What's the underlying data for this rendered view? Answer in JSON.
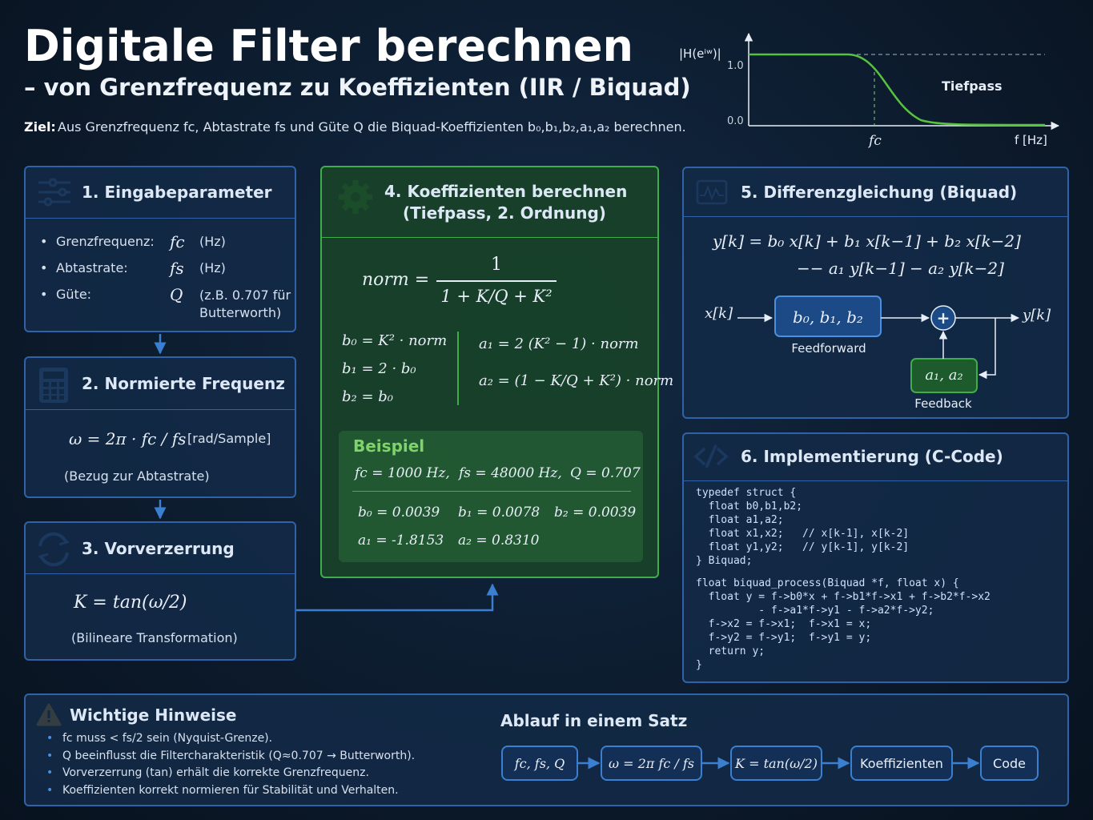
{
  "header": {
    "title": "Digitale Filter berechnen",
    "subtitle": "– von Grenzfrequenz zu Koeffizienten (IIR / Biquad)",
    "goal_label": "Ziel:",
    "goal_text": "Aus Grenzfrequenz fc, Abtastrate fs und Güte Q die Biquad-Koeffizienten b₀,b₁,b₂,a₁,a₂ berechnen."
  },
  "plot": {
    "y_label": "|H(eⁱʷ)|",
    "y_top": "1.0",
    "y_bottom": "0.0",
    "x_mark": "fc",
    "x_label": "f [Hz]",
    "curve_label": "Tiefpass"
  },
  "input": {
    "title": "1. Eingabeparameter",
    "rows": [
      [
        "Grenzfrequenz:",
        "fc",
        "(Hz)"
      ],
      [
        "Abtastrate:",
        "fs",
        "(Hz)"
      ],
      [
        "Güte:",
        "Q",
        "(z.B. 0.707 für Butterworth)"
      ]
    ]
  },
  "normfreq": {
    "title": "2. Normierte Frequenz",
    "formula": "ω = 2π · fc / fs",
    "unit": "[rad/Sample]",
    "note": "(Bezug zur Abtastrate)"
  },
  "prewarp": {
    "title": "3. Vorverzerrung",
    "formula": "K = tan(ω/2)",
    "note": "(Bilineare Transformation)"
  },
  "coeffs": {
    "title": "4. Koeffizienten berechnen",
    "subtitle": "(Tiefpass, 2. Ordnung)",
    "norm_label": "norm =",
    "numerator": "1",
    "denominator": "1 + K/Q + K²",
    "left": [
      "b₀ = K² · norm",
      "b₁ = 2 · b₀",
      "b₂ = b₀"
    ],
    "right": [
      "a₁ = 2 (K² − 1) · norm",
      "a₂ = (1 − K/Q + K²) · norm"
    ],
    "example": {
      "title": "Beispiel",
      "params": [
        "fc = 1000 Hz,",
        "fs = 48000 Hz,",
        "Q = 0.707"
      ],
      "results": [
        "b₀ = 0.0039",
        "b₁ = 0.0078",
        "b₂ = 0.0039",
        "a₁ = -1.8153",
        "a₂ = 0.8310"
      ]
    }
  },
  "diffeq": {
    "title": "5. Differenzgleichung (Biquad)",
    "lines": [
      "y[k] = b₀ x[k] + b₁ x[k−1] + b₂ x[k−2]",
      "−− a₁ y[k−1] − a₂ y[k−2]"
    ],
    "input": "x[k]",
    "ff": "b₀, b₁, b₂",
    "ff_label": "Feedforward",
    "sum": "+",
    "output": "y[k]",
    "fb": "a₁, a₂",
    "fb_label": "Feedback"
  },
  "code": {
    "title": "6. Implementierung (C-Code)",
    "blocks": [
      [
        "typedef struct {",
        "  float b0,b1,b2;",
        "  float a1,a2;",
        "  float x1,x2;   // x[k-1], x[k-2]",
        "  float y1,y2;   // y[k-1], y[k-2]",
        "} Biquad;"
      ],
      [
        "float biquad_process(Biquad *f, float x) {",
        "  float y = f->b0*x + f->b1*f->x1 + f->b2*f->x2",
        "          - f->a1*f->y1 - f->a2*f->y2;",
        "  f->x2 = f->x1;  f->x1 = x;",
        "  f->y2 = f->y1;  f->y1 = y;",
        "  return y;",
        "}"
      ]
    ]
  },
  "hints": {
    "title": "Wichtige Hinweise",
    "items": [
      "fc muss < fs/2 sein (Nyquist-Grenze).",
      "Q beeinflusst die Filtercharakteristik (Q≈0.707 → Butterworth).",
      "Vorverzerrung (tan) erhält die korrekte Grenzfrequenz.",
      "Koeffizienten korrekt normieren für Stabilität und Verhalten."
    ]
  },
  "flow": {
    "title": "Ablauf in einem Satz",
    "steps": [
      "fc, fs, Q",
      "ω = 2π fc / fs",
      "K = tan(ω/2)",
      "Koeffizienten",
      "Code"
    ]
  }
}
